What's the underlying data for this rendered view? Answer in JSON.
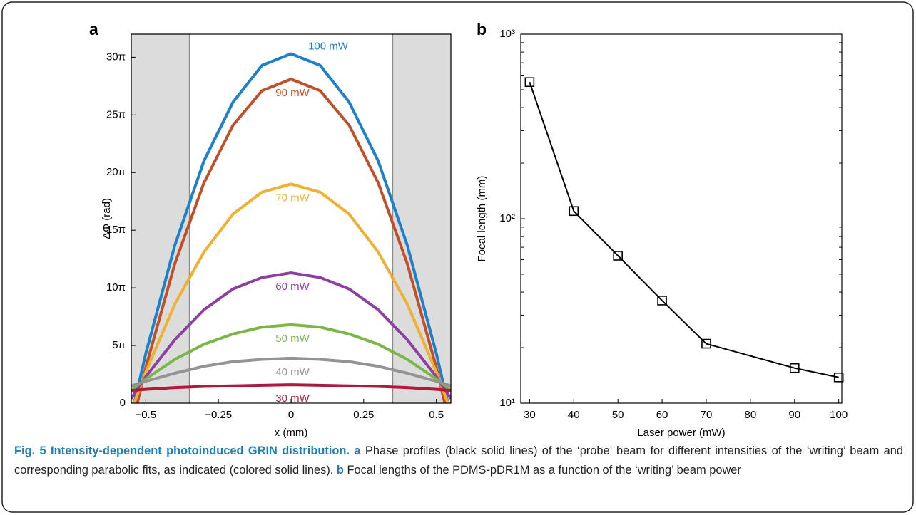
{
  "chart_data": [
    {
      "type": "line",
      "panel": "a",
      "xlabel": "x (mm)",
      "ylabel": "ΔΦ (rad)",
      "xlim": [
        -0.55,
        0.55
      ],
      "ylim": [
        0,
        32
      ],
      "xticks": [
        {
          "value": -0.5,
          "label": "−0.5"
        },
        {
          "value": -0.25,
          "label": "−0.25"
        },
        0,
        0.25,
        0.5
      ],
      "yticks": [
        0,
        {
          "value": 5,
          "label": "5π"
        },
        {
          "value": 10,
          "label": "10π"
        },
        {
          "value": 15,
          "label": "15π"
        },
        {
          "value": 20,
          "label": "20π"
        },
        {
          "value": 25,
          "label": "25π"
        },
        {
          "value": 30,
          "label": "30π"
        }
      ],
      "shaded_regions": [
        {
          "from": -0.55,
          "to": -0.35
        },
        {
          "from": 0.35,
          "to": 0.55
        }
      ],
      "x": [
        -0.55,
        -0.5,
        -0.4,
        -0.3,
        -0.2,
        -0.1,
        0,
        0.1,
        0.2,
        0.3,
        0.4,
        0.5,
        0.55
      ],
      "series": [
        {
          "name": "100 mW",
          "color": "#1f7fc8",
          "values": [
            -1.1,
            4.3,
            13.7,
            21.0,
            26.1,
            29.3,
            30.3,
            29.3,
            26.1,
            21.0,
            13.7,
            4.3,
            -1.1
          ]
        },
        {
          "name": "90 mW",
          "color": "#c0502a",
          "values": [
            -2.2,
            3.1,
            12.1,
            19.1,
            24.1,
            27.1,
            28.1,
            27.1,
            24.1,
            19.1,
            12.1,
            3.1,
            -2.2
          ]
        },
        {
          "name": "70 mW",
          "color": "#eeb133",
          "values": [
            -0.7,
            2.7,
            8.6,
            13.1,
            16.4,
            18.3,
            19.0,
            18.3,
            16.4,
            13.1,
            8.6,
            2.7,
            -0.7
          ]
        },
        {
          "name": "60 mW",
          "color": "#8e3fa0",
          "values": [
            0.4,
            2.3,
            5.5,
            8.1,
            9.9,
            10.9,
            11.3,
            10.9,
            9.9,
            8.1,
            5.5,
            2.3,
            0.4
          ]
        },
        {
          "name": "50 mW",
          "color": "#7ab648",
          "values": [
            1.1,
            2.1,
            3.8,
            5.1,
            6.0,
            6.6,
            6.8,
            6.6,
            6.0,
            5.1,
            3.8,
            2.1,
            1.1
          ]
        },
        {
          "name": "40 mW",
          "color": "#939393",
          "values": [
            1.5,
            1.9,
            2.6,
            3.2,
            3.6,
            3.8,
            3.9,
            3.8,
            3.6,
            3.2,
            2.6,
            1.9,
            1.5
          ]
        },
        {
          "name": "30 mW",
          "color": "#b01a3a",
          "values": [
            1.1,
            1.2,
            1.35,
            1.45,
            1.5,
            1.55,
            1.6,
            1.55,
            1.5,
            1.45,
            1.35,
            1.2,
            1.1
          ]
        }
      ]
    },
    {
      "type": "line",
      "panel": "b",
      "xlabel": "Laser power (mW)",
      "ylabel": "Focal length (mm)",
      "log_y": true,
      "marker": "square",
      "color": "#000000",
      "xlim": [
        28,
        100.7
      ],
      "ylim": [
        10,
        1000
      ],
      "xticks": [
        30,
        40,
        50,
        60,
        70,
        80,
        90,
        100
      ],
      "yticks": [
        {
          "value": 10,
          "label": "10¹"
        },
        {
          "value": 100,
          "label": "10²"
        },
        {
          "value": 1000,
          "label": "10³"
        }
      ],
      "x": [
        30,
        40,
        50,
        60,
        70,
        90,
        100
      ],
      "values": [
        550,
        110,
        63,
        36,
        21,
        15.5,
        13.8
      ]
    }
  ],
  "caption": {
    "title": "Fig. 5 Intensity-dependent photoinduced GRIN distribution.",
    "parts": [
      {
        "label": "a",
        "text": "Phase profiles (black solid lines) of the ‘probe’ beam for different intensities of the ‘writing’ beam and corresponding parabolic fits, as indicated (colored solid lines)."
      },
      {
        "label": "b",
        "text": "Focal lengths of the PDMS-pDR1M as a function of the ‘writing’ beam power"
      }
    ]
  }
}
